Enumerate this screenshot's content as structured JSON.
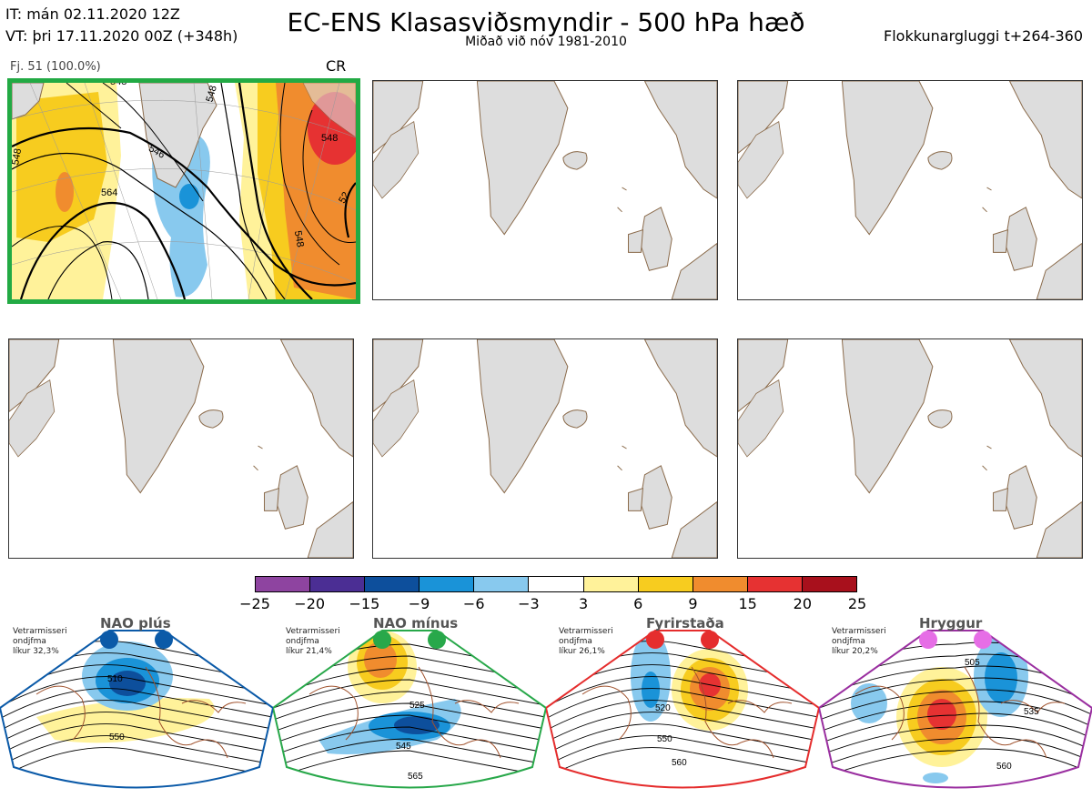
{
  "header": {
    "it_line": "IT: mán 02.11.2020 12Z",
    "vt_line": "VT: þri 17.11.2020 00Z  (+348h)",
    "title": "EC-ENS Klasasviðsmyndir - 500 hPa hæð",
    "subtitle": "Miðað við nóv 1981-2010",
    "window": "Flokkunargluggi t+264-360"
  },
  "cluster": {
    "label": "Fj. 51 (100.0%)",
    "regime_code": "CR",
    "contour_labels": [
      "548",
      "548",
      "564",
      "546",
      "548",
      "548",
      "548",
      "52"
    ]
  },
  "colorbar": {
    "colors": [
      "#8e44a0",
      "#4b2e94",
      "#0d4f9c",
      "#1a93d8",
      "#88c9ee",
      "#ffffff",
      "#fff29a",
      "#f7cc1f",
      "#f08c2e",
      "#e63232",
      "#a8101c"
    ],
    "ticks": [
      "−25",
      "−20",
      "−15",
      "−9",
      "−6",
      "−3",
      "3",
      "6",
      "9",
      "15",
      "20",
      "25"
    ]
  },
  "regimes": [
    {
      "name": "NAO plús",
      "info": [
        "Vetrarmisseri",
        "ondjfma",
        "líkur 32,3%"
      ],
      "color": "#0b5aa8",
      "labels": [
        "510",
        "550"
      ]
    },
    {
      "name": "NAO mínus",
      "info": [
        "Vetrarmisseri",
        "ondjfma",
        "líkur 21,4%"
      ],
      "color": "#28a84a",
      "labels": [
        "525",
        "545",
        "565"
      ]
    },
    {
      "name": "Fyrirstaða",
      "info": [
        "Vetrarmisseri",
        "ondjfma",
        "líkur 26,1%"
      ],
      "color": "#e52d2d",
      "labels": [
        "520",
        "550",
        "560"
      ]
    },
    {
      "name": "Hryggur",
      "info": [
        "Vetrarmisseri",
        "ondjfma",
        "líkur 20,2%"
      ],
      "color": "#9a2fa0",
      "labels": [
        "505",
        "535",
        "560"
      ]
    }
  ]
}
